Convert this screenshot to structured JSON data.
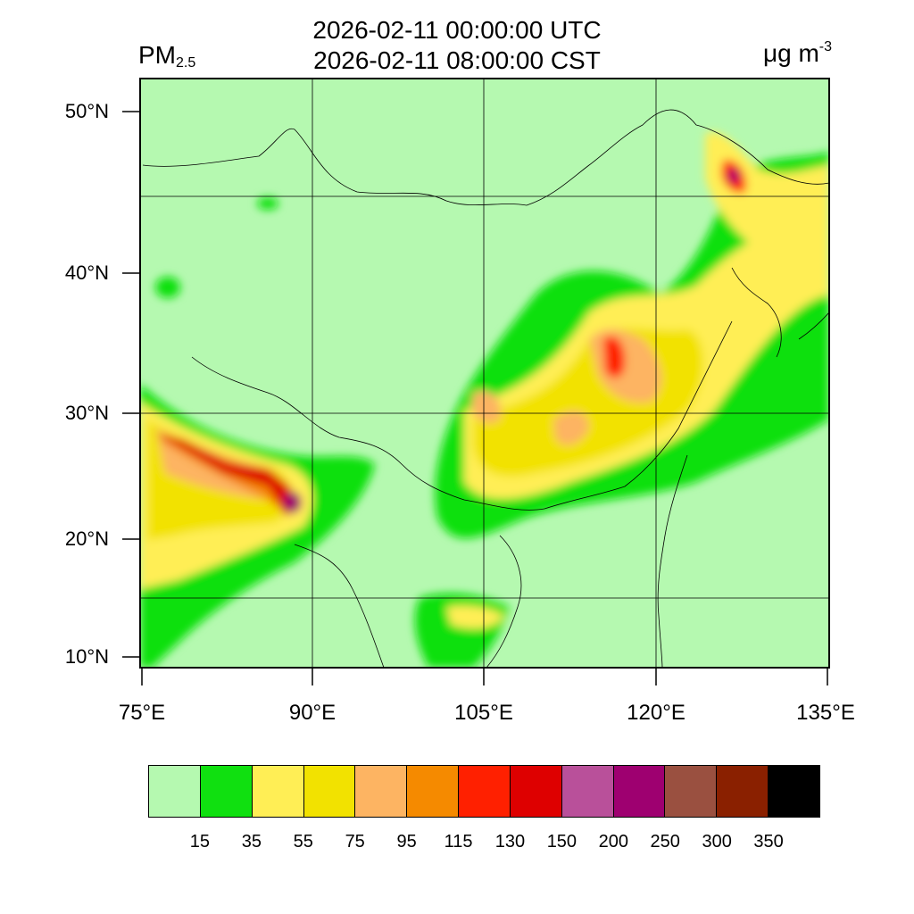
{
  "header": {
    "time_utc": "2026-02-11 00:00:00 UTC",
    "time_cst": "2026-02-11 08:00:00 CST",
    "variable_main": "PM",
    "variable_sub": "2.5",
    "unit_main": "μg m",
    "unit_sup": "-3"
  },
  "axes": {
    "lat_labels": [
      "50°N",
      "40°N",
      "30°N",
      "20°N",
      "10°N"
    ],
    "lon_labels": [
      "75°E",
      "90°E",
      "105°E",
      "120°E",
      "135°E"
    ]
  },
  "legend": {
    "colors": [
      "#b5f9b0",
      "#10e010",
      "#ffee55",
      "#f2e200",
      "#fdb462",
      "#f58a00",
      "#ff2000",
      "#de0000",
      "#b9509a",
      "#9e0070",
      "#9a5040",
      "#8a2000",
      "#000000"
    ],
    "ticks": [
      "15",
      "35",
      "55",
      "75",
      "95",
      "115",
      "130",
      "150",
      "200",
      "250",
      "300",
      "350"
    ]
  }
}
